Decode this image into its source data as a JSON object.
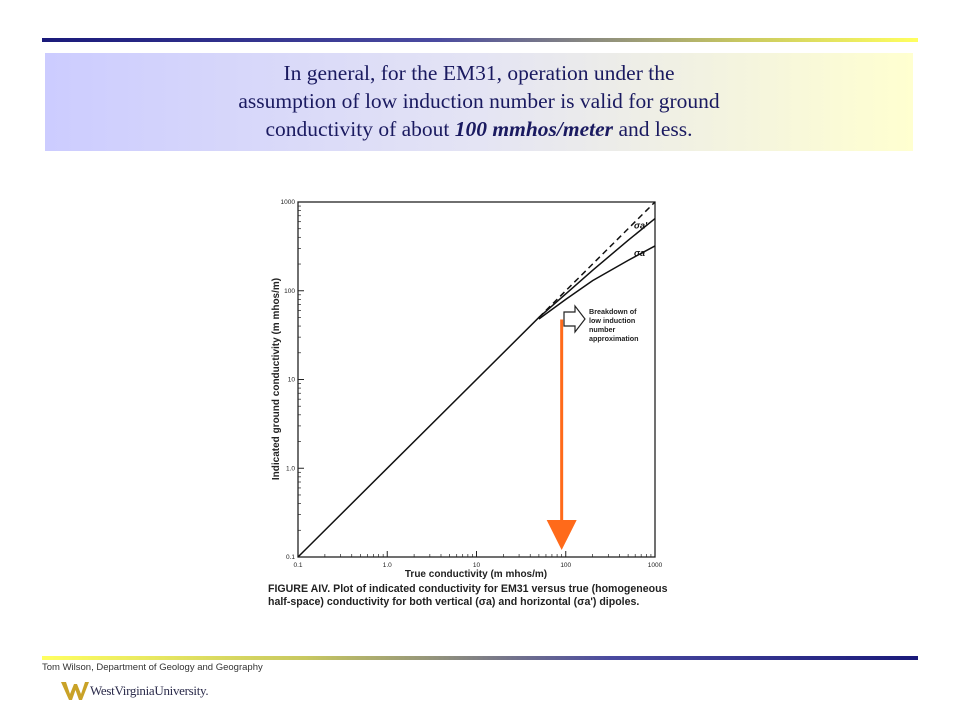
{
  "title": {
    "line1": "In general, for the EM31, operation under the",
    "line2": "assumption of low induction number is valid for ground",
    "line3_pre": "conductivity of about ",
    "line3_em": "100 mmhos/meter",
    "line3_post": " and less."
  },
  "chart_data": {
    "type": "line",
    "xlabel": "True conductivity (m mhos/m)",
    "ylabel": "Indicated ground conductivity (m mhos/m)",
    "x_scale": "log",
    "y_scale": "log",
    "xlim": [
      0.1,
      1000
    ],
    "ylim": [
      0.1,
      1000
    ],
    "x_ticks": [
      "0.1",
      "1.0",
      "10",
      "100",
      "1000"
    ],
    "y_ticks": [
      "0.1",
      "1.0",
      "10",
      "100",
      "1000"
    ],
    "series": [
      {
        "name": "",
        "style": "dashed",
        "x": [
          50,
          1000
        ],
        "y": [
          50,
          1000
        ]
      },
      {
        "name": "σa'",
        "style": "solid",
        "x": [
          0.1,
          50,
          100,
          200,
          500,
          1000
        ],
        "y": [
          0.1,
          50,
          92,
          170,
          370,
          650
        ]
      },
      {
        "name": "σa",
        "style": "solid",
        "x": [
          50,
          100,
          200,
          500,
          1000
        ],
        "y": [
          48,
          80,
          130,
          220,
          320
        ]
      }
    ],
    "annotation": {
      "lines": [
        "Breakdown of",
        "low induction",
        "number",
        "approximation"
      ]
    },
    "marker": {
      "color": "#ff6a1a",
      "x": 90
    }
  },
  "caption": {
    "label": "FIGURE AIV.",
    "text": "Plot of indicated conductivity for EM31 versus true (homogeneous half-space) conductivity for both vertical (σa) and horizontal (σa') dipoles."
  },
  "footer": {
    "author": "Tom Wilson, Department of Geology and Geography",
    "university": "WestVirginiaUniversity."
  },
  "colors": {
    "title_text": "#1a1a60",
    "marker": "#ff6a1a",
    "logo": "#c9a227"
  }
}
